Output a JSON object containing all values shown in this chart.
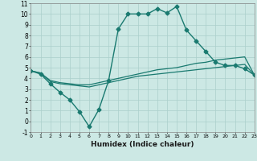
{
  "xlabel": "Humidex (Indice chaleur)",
  "ylabel": "",
  "bg_color": "#cce8e4",
  "grid_color": "#aacfcb",
  "line_color": "#1a7a70",
  "xlim": [
    0,
    23
  ],
  "ylim": [
    -1,
    11
  ],
  "xticks": [
    0,
    1,
    2,
    3,
    4,
    5,
    6,
    7,
    8,
    9,
    10,
    11,
    12,
    13,
    14,
    15,
    16,
    17,
    18,
    19,
    20,
    21,
    22,
    23
  ],
  "yticks": [
    -1,
    0,
    1,
    2,
    3,
    4,
    5,
    6,
    7,
    8,
    9,
    10,
    11
  ],
  "series": [
    {
      "x": [
        0,
        1,
        2,
        3,
        4,
        5,
        6,
        7,
        8,
        9,
        10,
        11,
        12,
        13,
        14,
        15,
        16,
        17,
        18,
        19,
        20,
        21,
        22,
        23
      ],
      "y": [
        4.7,
        4.4,
        3.5,
        2.7,
        2.0,
        0.9,
        -0.5,
        1.1,
        3.8,
        8.6,
        10.0,
        10.0,
        10.0,
        10.5,
        10.1,
        10.7,
        8.5,
        7.5,
        6.5,
        5.5,
        5.2,
        5.2,
        4.9,
        4.3
      ],
      "marker": "D",
      "markersize": 2.5,
      "linewidth": 1.0
    },
    {
      "x": [
        0,
        1,
        2,
        3,
        4,
        5,
        6,
        7,
        8,
        9,
        10,
        11,
        12,
        13,
        14,
        15,
        16,
        17,
        18,
        19,
        20,
        21,
        22,
        23
      ],
      "y": [
        4.7,
        4.5,
        3.8,
        3.6,
        3.5,
        3.4,
        3.4,
        3.6,
        3.8,
        4.0,
        4.2,
        4.4,
        4.6,
        4.8,
        4.9,
        5.0,
        5.2,
        5.4,
        5.5,
        5.7,
        5.8,
        5.9,
        6.0,
        4.3
      ],
      "marker": null,
      "markersize": 0,
      "linewidth": 0.9
    },
    {
      "x": [
        0,
        1,
        2,
        3,
        4,
        5,
        6,
        7,
        8,
        9,
        10,
        11,
        12,
        13,
        14,
        15,
        16,
        17,
        18,
        19,
        20,
        21,
        22,
        23
      ],
      "y": [
        4.7,
        4.5,
        3.7,
        3.5,
        3.4,
        3.3,
        3.2,
        3.4,
        3.6,
        3.8,
        4.0,
        4.2,
        4.3,
        4.4,
        4.5,
        4.6,
        4.7,
        4.8,
        4.9,
        5.0,
        5.1,
        5.2,
        5.3,
        4.3
      ],
      "marker": null,
      "markersize": 0,
      "linewidth": 0.9
    }
  ]
}
